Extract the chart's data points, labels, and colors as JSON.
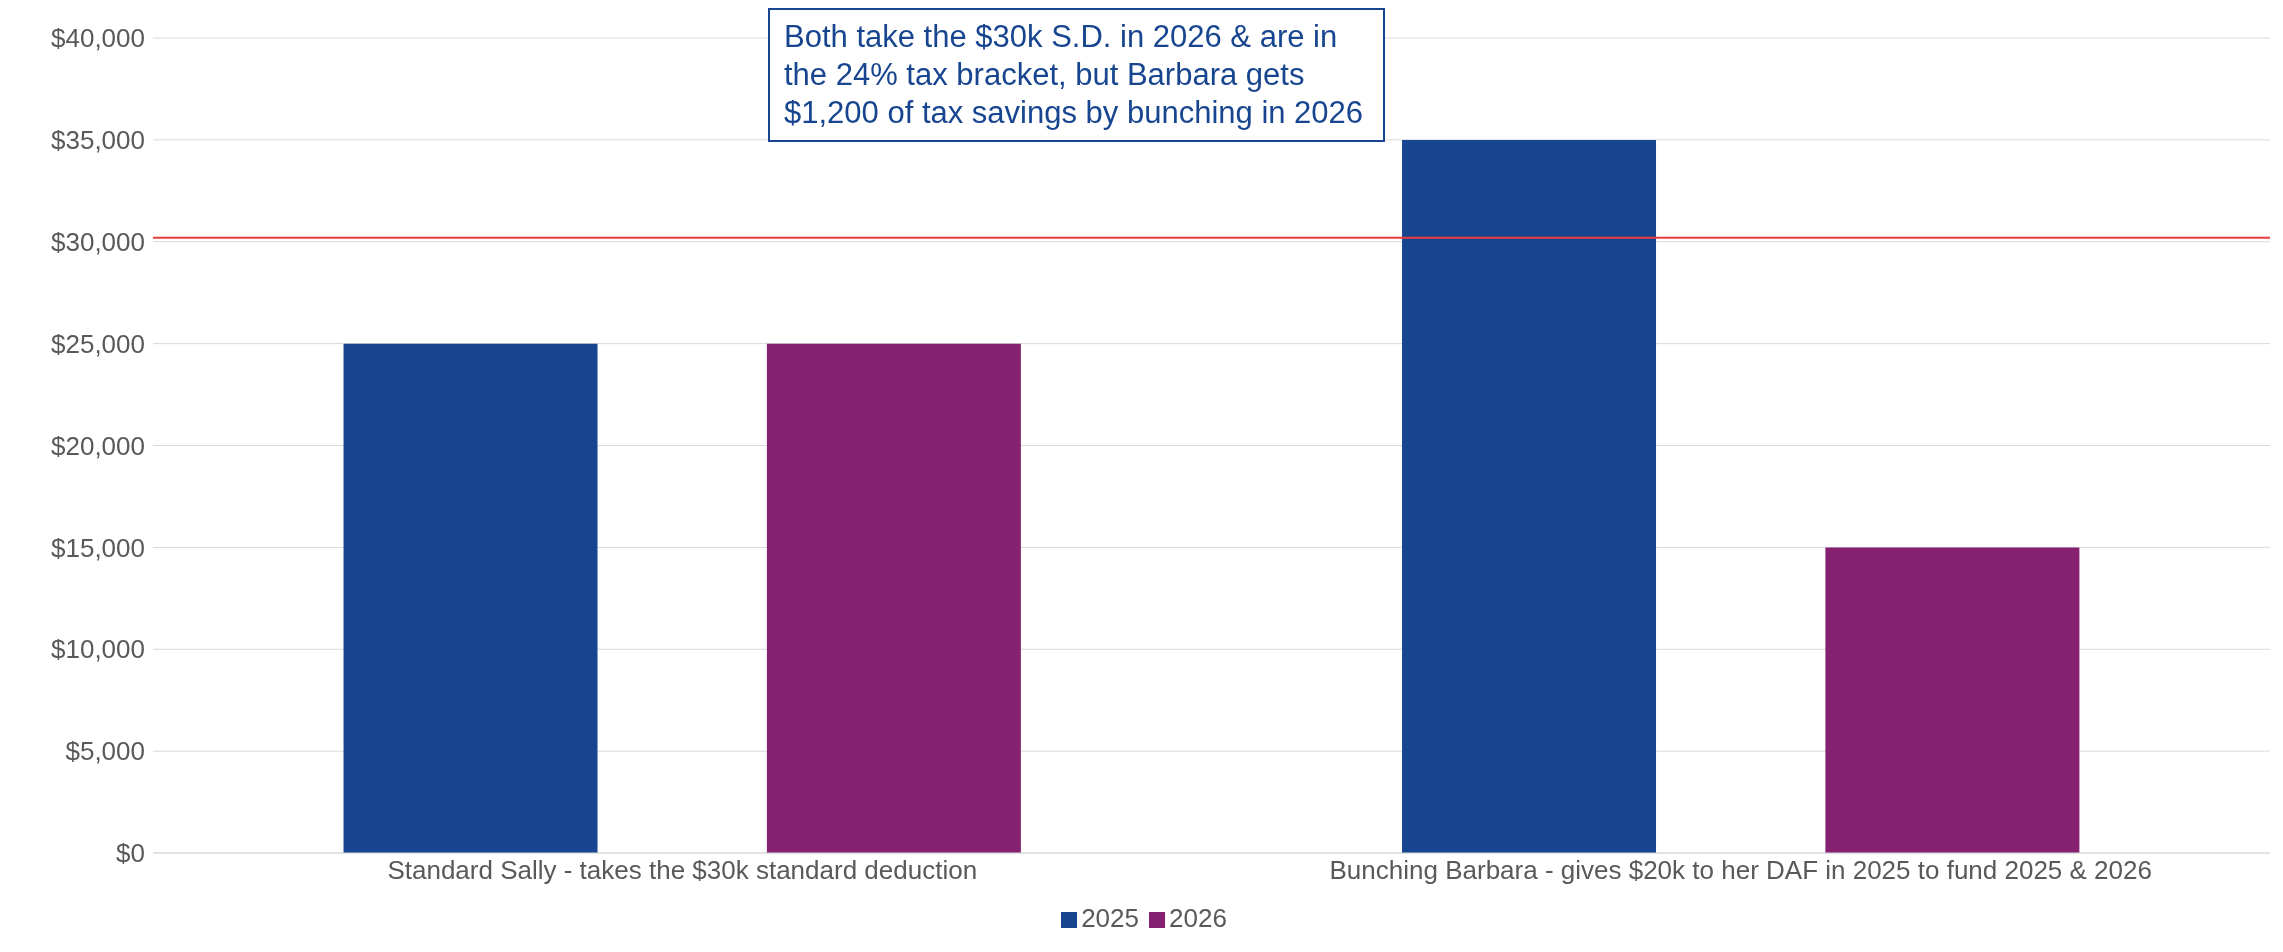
{
  "chart_data": {
    "type": "bar",
    "categories": [
      "Standard Sally - takes the $30k standard deduction",
      "Bunching Barbara - gives $20k to her DAF in 2025 to fund 2025 & 2026"
    ],
    "series": [
      {
        "name": "2025",
        "color": "#17458f",
        "values": [
          25000,
          35000
        ]
      },
      {
        "name": "2026",
        "color": "#862070",
        "values": [
          25000,
          15000
        ]
      }
    ],
    "ylim": [
      0,
      40000
    ],
    "yticks": [
      {
        "value": 0,
        "label": "$0"
      },
      {
        "value": 5000,
        "label": "$5,000"
      },
      {
        "value": 10000,
        "label": "$10,000"
      },
      {
        "value": 15000,
        "label": "$15,000"
      },
      {
        "value": 20000,
        "label": "$20,000"
      },
      {
        "value": 25000,
        "label": "$25,000"
      },
      {
        "value": 30000,
        "label": "$30,000"
      },
      {
        "value": 35000,
        "label": "$35,000"
      },
      {
        "value": 40000,
        "label": "$40,000"
      }
    ],
    "ref_lines": [
      {
        "axis": "y",
        "value": 30200,
        "color": "#ee3b3b"
      }
    ],
    "annotations": [
      "Both take the $30k S.D. in 2026 & are in the 24% tax bracket, but Barbara gets $1,200 of tax savings by bunching in 2026"
    ],
    "grid": "y",
    "legend": "bottom"
  }
}
